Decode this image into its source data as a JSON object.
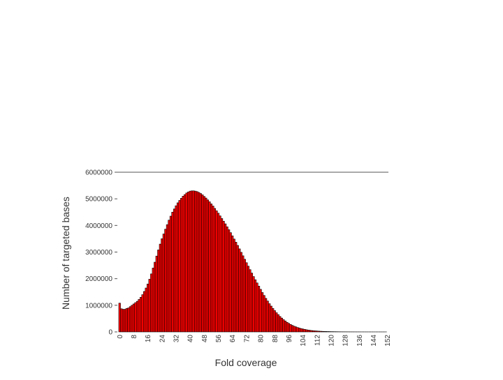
{
  "chart_data": {
    "type": "bar",
    "title": "",
    "xlabel": "Fold coverage",
    "ylabel": "Number of targeted bases",
    "ylim": [
      0,
      6000000
    ],
    "xlim": [
      0,
      152
    ],
    "y_ticks": [
      "0",
      "1000000",
      "2000000",
      "3000000",
      "4000000",
      "5000000",
      "6000000"
    ],
    "y_tick_values": [
      0,
      1000000,
      2000000,
      3000000,
      4000000,
      5000000,
      6000000
    ],
    "x_ticks": [
      "0",
      "8",
      "16",
      "24",
      "32",
      "40",
      "48",
      "56",
      "64",
      "72",
      "80",
      "88",
      "96",
      "104",
      "112",
      "120",
      "128",
      "136",
      "144",
      "152"
    ],
    "x_tick_values": [
      0,
      8,
      16,
      24,
      32,
      40,
      48,
      56,
      64,
      72,
      80,
      88,
      96,
      104,
      112,
      120,
      128,
      136,
      144,
      152
    ],
    "bar_color": "#ff0000",
    "bar_edge_color": "#000000",
    "grid": false,
    "x": [
      0,
      1,
      2,
      3,
      4,
      5,
      6,
      7,
      8,
      9,
      10,
      11,
      12,
      13,
      14,
      15,
      16,
      17,
      18,
      19,
      20,
      21,
      22,
      23,
      24,
      25,
      26,
      27,
      28,
      29,
      30,
      31,
      32,
      33,
      34,
      35,
      36,
      37,
      38,
      39,
      40,
      41,
      42,
      43,
      44,
      45,
      46,
      47,
      48,
      49,
      50,
      51,
      52,
      53,
      54,
      55,
      56,
      57,
      58,
      59,
      60,
      61,
      62,
      63,
      64,
      65,
      66,
      67,
      68,
      69,
      70,
      71,
      72,
      73,
      74,
      75,
      76,
      77,
      78,
      79,
      80,
      81,
      82,
      83,
      84,
      85,
      86,
      87,
      88,
      89,
      90,
      91,
      92,
      93,
      94,
      95,
      96,
      97,
      98,
      99,
      100,
      101,
      102,
      103,
      104,
      105,
      106,
      107,
      108,
      109,
      110,
      111,
      112,
      113,
      114,
      115,
      116,
      117,
      118,
      119,
      120,
      121,
      122,
      123,
      124,
      125,
      126,
      127,
      128,
      129,
      130,
      131,
      132,
      133,
      134,
      135,
      136,
      137,
      138,
      139,
      140,
      141,
      142,
      143,
      144,
      145,
      146,
      147,
      148,
      149,
      150,
      151,
      152
    ],
    "values": [
      1080000,
      870000,
      850000,
      850000,
      880000,
      900000,
      950000,
      1000000,
      1050000,
      1100000,
      1150000,
      1220000,
      1300000,
      1400000,
      1520000,
      1650000,
      1800000,
      1980000,
      2180000,
      2400000,
      2620000,
      2850000,
      3080000,
      3300000,
      3500000,
      3680000,
      3860000,
      4030000,
      4200000,
      4350000,
      4500000,
      4620000,
      4740000,
      4850000,
      4940000,
      5020000,
      5100000,
      5160000,
      5220000,
      5260000,
      5290000,
      5300000,
      5300000,
      5290000,
      5270000,
      5240000,
      5200000,
      5150000,
      5090000,
      5030000,
      4960000,
      4890000,
      4810000,
      4730000,
      4640000,
      4550000,
      4460000,
      4360000,
      4260000,
      4160000,
      4060000,
      3950000,
      3840000,
      3730000,
      3610000,
      3490000,
      3370000,
      3250000,
      3120000,
      2990000,
      2860000,
      2730000,
      2600000,
      2470000,
      2340000,
      2210000,
      2080000,
      1960000,
      1840000,
      1720000,
      1600000,
      1480000,
      1370000,
      1260000,
      1160000,
      1060000,
      970000,
      880000,
      800000,
      720000,
      650000,
      580000,
      520000,
      460000,
      410000,
      360000,
      320000,
      280000,
      245000,
      215000,
      190000,
      165000,
      145000,
      125000,
      110000,
      95000,
      82000,
      70000,
      60000,
      52000,
      45000,
      39000,
      34000,
      29000,
      25000,
      21000,
      18000,
      16000,
      14000,
      12000,
      10000,
      9000,
      8000,
      7000,
      6000,
      5200,
      4500,
      3900,
      3400,
      2900,
      2500,
      2200,
      1900,
      1600,
      1400,
      1200,
      1000,
      900,
      800,
      700,
      600,
      500,
      450,
      400,
      350,
      300,
      260,
      230,
      200,
      180,
      160,
      140,
      120
    ]
  }
}
